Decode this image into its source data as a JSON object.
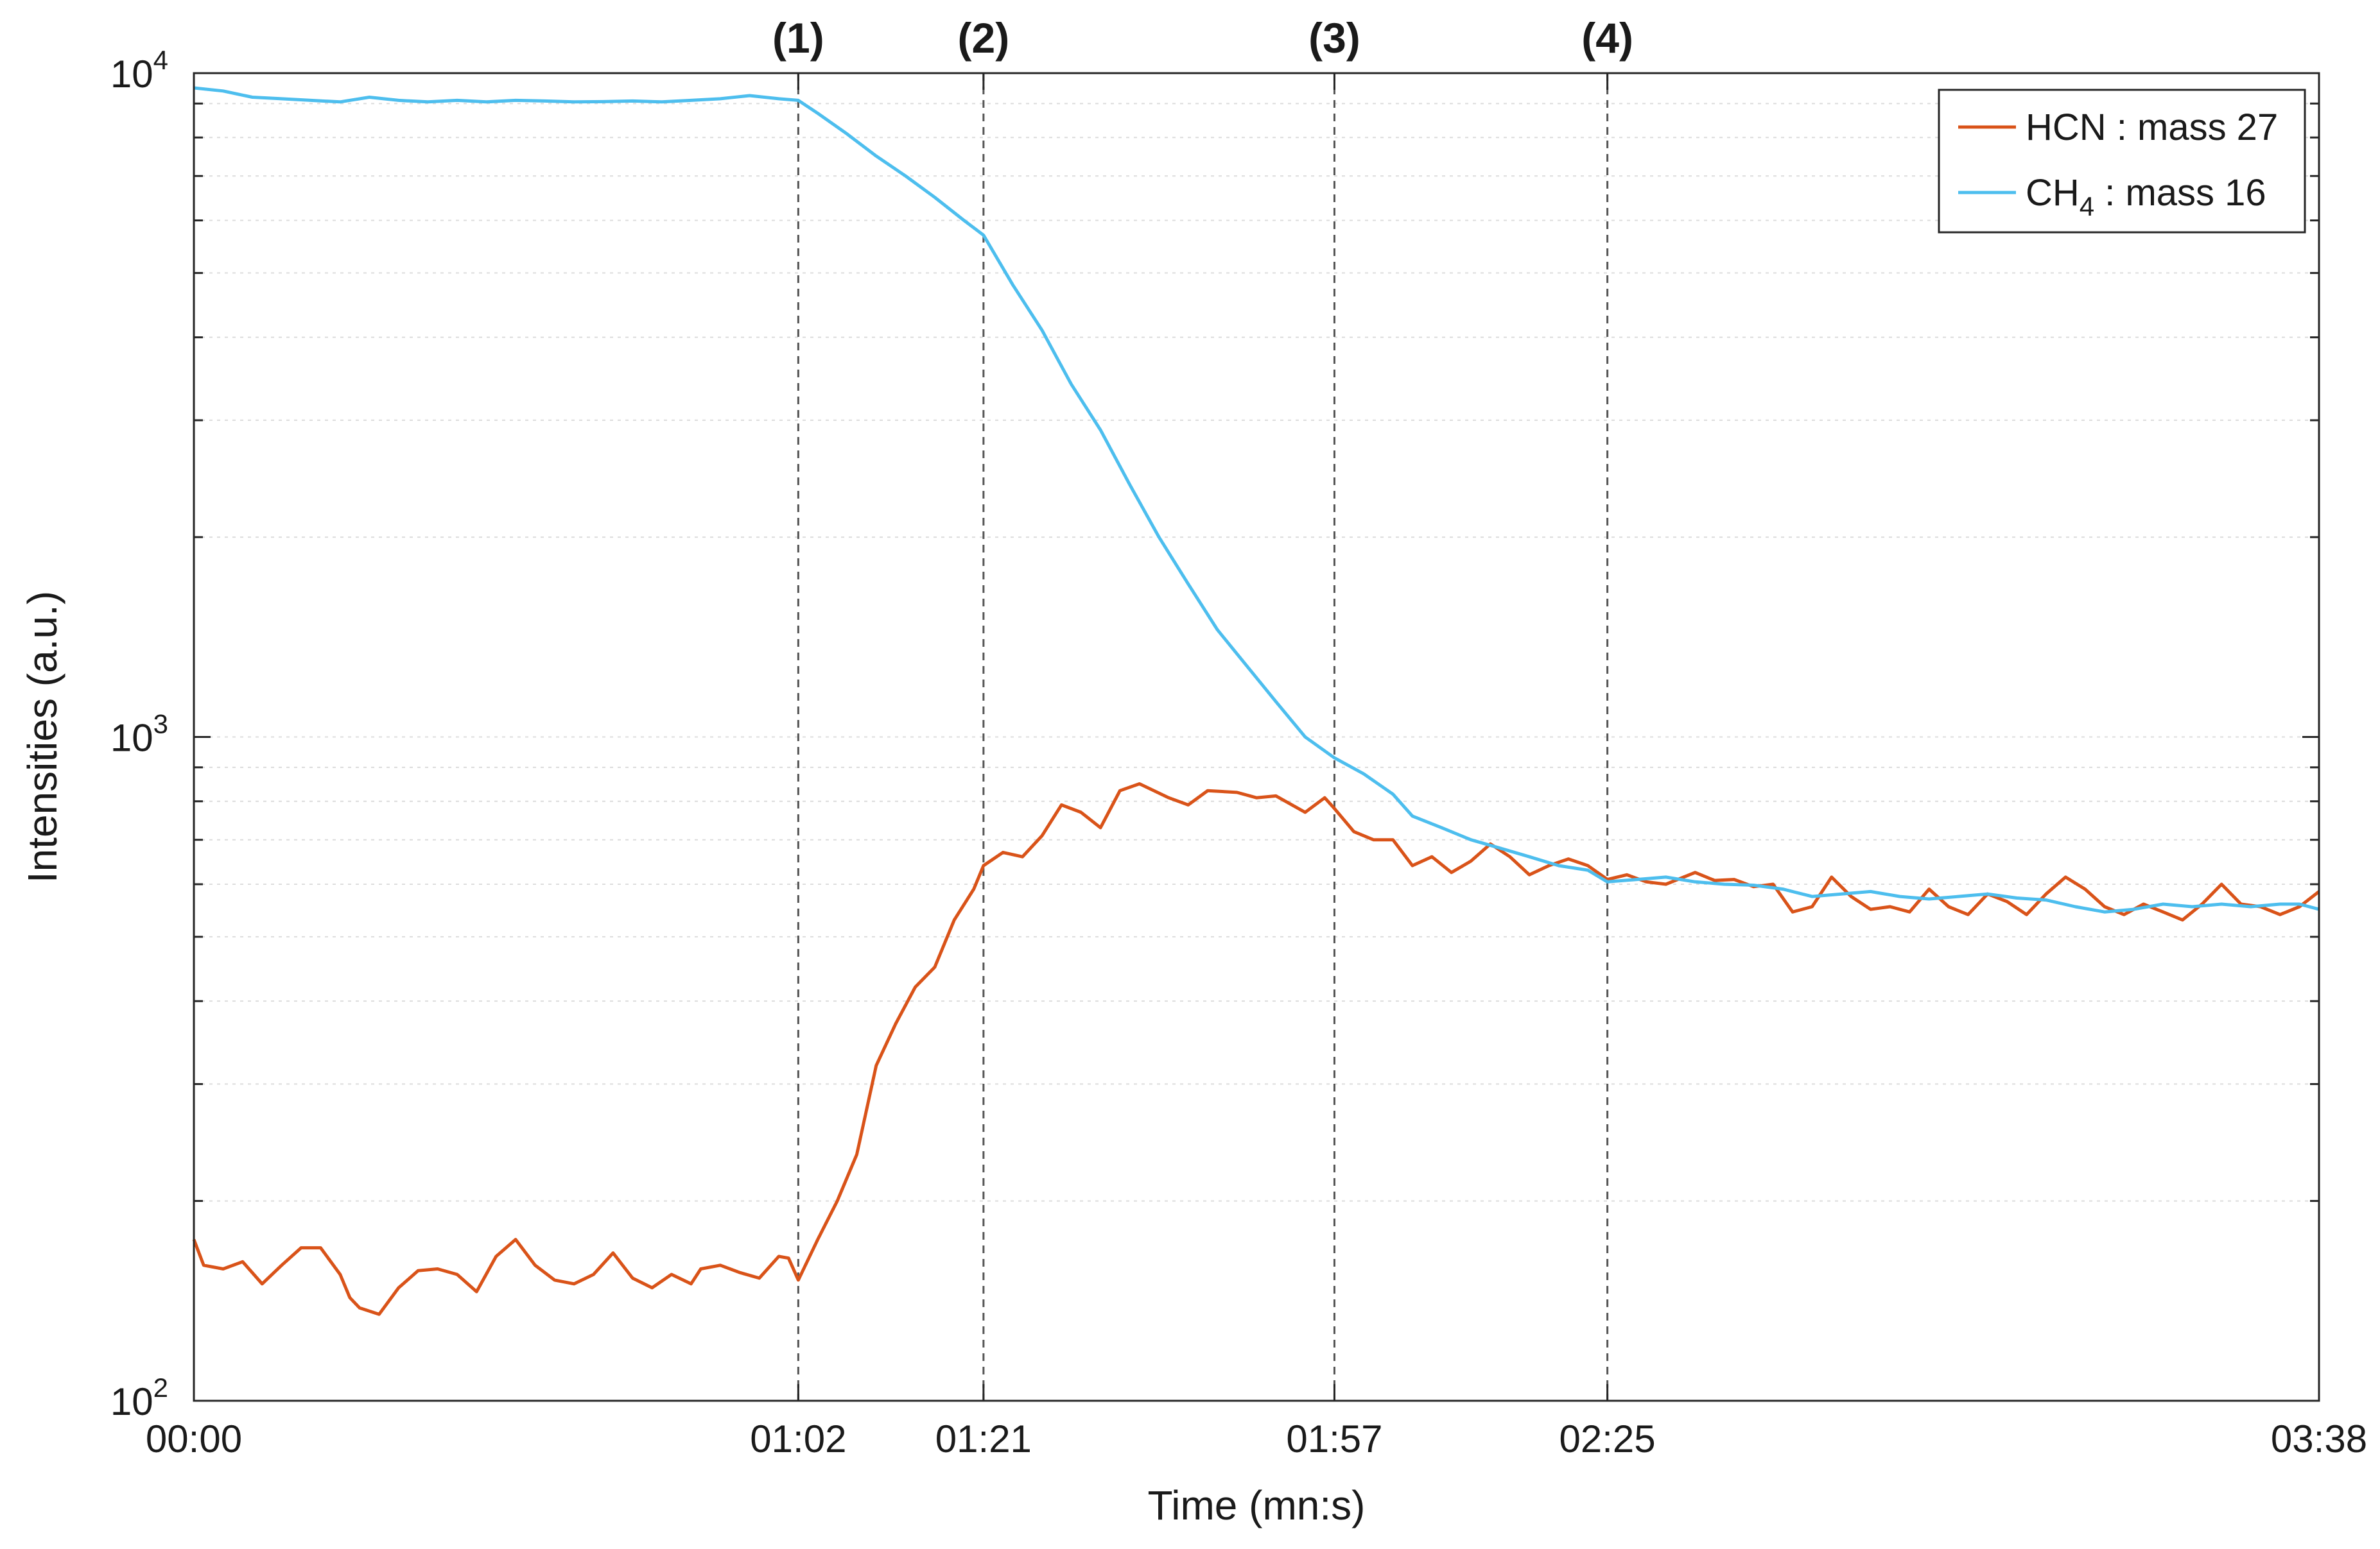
{
  "chart_data": {
    "type": "line",
    "title": "",
    "xlabel": "Time (mn:s)",
    "ylabel": "Intensities (a.u.)",
    "yscale": "log",
    "ylim": [
      100,
      10000
    ],
    "xlim": [
      "00:00",
      "03:38"
    ],
    "y_ticks": [
      {
        "value": 100,
        "base": "10",
        "exp": "2"
      },
      {
        "value": 1000,
        "base": "10",
        "exp": "3"
      },
      {
        "value": 10000,
        "base": "10",
        "exp": "4"
      }
    ],
    "x_ticks": [
      "00:00",
      "01:02",
      "01:21",
      "01:57",
      "02:25",
      "03:38"
    ],
    "grid": "horizontal, dotted",
    "legend_position": "top-right",
    "events": [
      {
        "label": "(1)",
        "x": "01:02"
      },
      {
        "label": "(2)",
        "x": "01:21"
      },
      {
        "label": "(3)",
        "x": "01:57"
      },
      {
        "label": "(4)",
        "x": "02:25"
      }
    ],
    "series": [
      {
        "name": "HCN : mass 27",
        "legend": {
          "base": "HCN : mass 27",
          "sub": "",
          "suffix": ""
        },
        "color": "#d95319",
        "points": [
          [
            "00:00",
            175
          ],
          [
            "00:01",
            160
          ],
          [
            "00:03",
            158
          ],
          [
            "00:05",
            162
          ],
          [
            "00:07",
            150
          ],
          [
            "00:09",
            160
          ],
          [
            "00:11",
            170
          ],
          [
            "00:13",
            170
          ],
          [
            "00:15",
            155
          ],
          [
            "00:16",
            143
          ],
          [
            "00:17",
            138
          ],
          [
            "00:19",
            135
          ],
          [
            "00:21",
            148
          ],
          [
            "00:23",
            157
          ],
          [
            "00:25",
            158
          ],
          [
            "00:27",
            155
          ],
          [
            "00:29",
            146
          ],
          [
            "00:31",
            165
          ],
          [
            "00:33",
            175
          ],
          [
            "00:35",
            160
          ],
          [
            "00:37",
            152
          ],
          [
            "00:39",
            150
          ],
          [
            "00:41",
            155
          ],
          [
            "00:43",
            167
          ],
          [
            "00:45",
            153
          ],
          [
            "00:47",
            148
          ],
          [
            "00:49",
            155
          ],
          [
            "00:51",
            150
          ],
          [
            "00:52",
            158
          ],
          [
            "00:54",
            160
          ],
          [
            "00:56",
            156
          ],
          [
            "00:58",
            153
          ],
          [
            "01:00",
            165
          ],
          [
            "01:01",
            164
          ],
          [
            "01:02",
            152
          ],
          [
            "01:04",
            175
          ],
          [
            "01:06",
            200
          ],
          [
            "01:08",
            235
          ],
          [
            "01:10",
            320
          ],
          [
            "01:12",
            370
          ],
          [
            "01:14",
            420
          ],
          [
            "01:16",
            450
          ],
          [
            "01:18",
            530
          ],
          [
            "01:20",
            590
          ],
          [
            "01:21",
            640
          ],
          [
            "01:23",
            670
          ],
          [
            "01:25",
            660
          ],
          [
            "01:27",
            710
          ],
          [
            "01:29",
            790
          ],
          [
            "01:31",
            770
          ],
          [
            "01:33",
            730
          ],
          [
            "01:35",
            830
          ],
          [
            "01:37",
            850
          ],
          [
            "01:40",
            810
          ],
          [
            "01:42",
            790
          ],
          [
            "01:44",
            830
          ],
          [
            "01:47",
            825
          ],
          [
            "01:49",
            810
          ],
          [
            "01:51",
            815
          ],
          [
            "01:54",
            770
          ],
          [
            "01:56",
            810
          ],
          [
            "01:57",
            780
          ],
          [
            "01:59",
            720
          ],
          [
            "02:01",
            700
          ],
          [
            "02:03",
            700
          ],
          [
            "02:05",
            640
          ],
          [
            "02:07",
            660
          ],
          [
            "02:09",
            625
          ],
          [
            "02:11",
            650
          ],
          [
            "02:13",
            690
          ],
          [
            "02:15",
            660
          ],
          [
            "02:17",
            620
          ],
          [
            "02:19",
            640
          ],
          [
            "02:21",
            655
          ],
          [
            "02:23",
            640
          ],
          [
            "02:25",
            610
          ],
          [
            "02:27",
            620
          ],
          [
            "02:29",
            605
          ],
          [
            "02:31",
            600
          ],
          [
            "02:34",
            625
          ],
          [
            "02:36",
            608
          ],
          [
            "02:38",
            610
          ],
          [
            "02:40",
            595
          ],
          [
            "02:42",
            600
          ],
          [
            "02:44",
            545
          ],
          [
            "02:46",
            555
          ],
          [
            "02:48",
            615
          ],
          [
            "02:50",
            575
          ],
          [
            "02:52",
            550
          ],
          [
            "02:54",
            555
          ],
          [
            "02:56",
            545
          ],
          [
            "02:58",
            590
          ],
          [
            "03:00",
            555
          ],
          [
            "03:02",
            540
          ],
          [
            "03:04",
            580
          ],
          [
            "03:06",
            565
          ],
          [
            "03:08",
            540
          ],
          [
            "03:10",
            580
          ],
          [
            "03:12",
            615
          ],
          [
            "03:14",
            590
          ],
          [
            "03:16",
            555
          ],
          [
            "03:18",
            540
          ],
          [
            "03:20",
            560
          ],
          [
            "03:22",
            545
          ],
          [
            "03:24",
            530
          ],
          [
            "03:26",
            560
          ],
          [
            "03:28",
            600
          ],
          [
            "03:30",
            560
          ],
          [
            "03:32",
            555
          ],
          [
            "03:34",
            540
          ],
          [
            "03:36",
            555
          ],
          [
            "03:38",
            585
          ]
        ]
      },
      {
        "name": "CH4 : mass 16",
        "legend": {
          "base": "CH",
          "sub": "4",
          "suffix": " : mass 16"
        },
        "color": "#4dbeee",
        "points": [
          [
            "00:00",
            9500
          ],
          [
            "00:03",
            9400
          ],
          [
            "00:06",
            9200
          ],
          [
            "00:09",
            9150
          ],
          [
            "00:12",
            9100
          ],
          [
            "00:15",
            9050
          ],
          [
            "00:18",
            9200
          ],
          [
            "00:21",
            9100
          ],
          [
            "00:24",
            9050
          ],
          [
            "00:27",
            9100
          ],
          [
            "00:30",
            9050
          ],
          [
            "00:33",
            9100
          ],
          [
            "00:36",
            9080
          ],
          [
            "00:39",
            9050
          ],
          [
            "00:42",
            9060
          ],
          [
            "00:45",
            9080
          ],
          [
            "00:48",
            9050
          ],
          [
            "00:51",
            9100
          ],
          [
            "00:54",
            9150
          ],
          [
            "00:57",
            9250
          ],
          [
            "01:00",
            9150
          ],
          [
            "01:02",
            9100
          ],
          [
            "01:04",
            8700
          ],
          [
            "01:07",
            8100
          ],
          [
            "01:10",
            7500
          ],
          [
            "01:13",
            7000
          ],
          [
            "01:16",
            6500
          ],
          [
            "01:19",
            6000
          ],
          [
            "01:21",
            5700
          ],
          [
            "01:24",
            4800
          ],
          [
            "01:27",
            4100
          ],
          [
            "01:30",
            3400
          ],
          [
            "01:33",
            2900
          ],
          [
            "01:36",
            2400
          ],
          [
            "01:39",
            2000
          ],
          [
            "01:42",
            1700
          ],
          [
            "01:45",
            1450
          ],
          [
            "01:48",
            1280
          ],
          [
            "01:51",
            1130
          ],
          [
            "01:54",
            1000
          ],
          [
            "01:57",
            930
          ],
          [
            "02:00",
            880
          ],
          [
            "02:03",
            820
          ],
          [
            "02:05",
            760
          ],
          [
            "02:08",
            730
          ],
          [
            "02:11",
            700
          ],
          [
            "02:14",
            680
          ],
          [
            "02:17",
            660
          ],
          [
            "02:20",
            640
          ],
          [
            "02:23",
            630
          ],
          [
            "02:25",
            605
          ],
          [
            "02:28",
            610
          ],
          [
            "02:31",
            615
          ],
          [
            "02:34",
            605
          ],
          [
            "02:37",
            600
          ],
          [
            "02:40",
            598
          ],
          [
            "02:43",
            590
          ],
          [
            "02:46",
            575
          ],
          [
            "02:49",
            580
          ],
          [
            "02:52",
            585
          ],
          [
            "02:55",
            575
          ],
          [
            "02:58",
            570
          ],
          [
            "03:01",
            575
          ],
          [
            "03:04",
            580
          ],
          [
            "03:07",
            572
          ],
          [
            "03:10",
            568
          ],
          [
            "03:13",
            555
          ],
          [
            "03:16",
            545
          ],
          [
            "03:19",
            550
          ],
          [
            "03:22",
            560
          ],
          [
            "03:25",
            555
          ],
          [
            "03:28",
            560
          ],
          [
            "03:31",
            555
          ],
          [
            "03:34",
            560
          ],
          [
            "03:36",
            560
          ],
          [
            "03:38",
            550
          ]
        ]
      }
    ]
  }
}
